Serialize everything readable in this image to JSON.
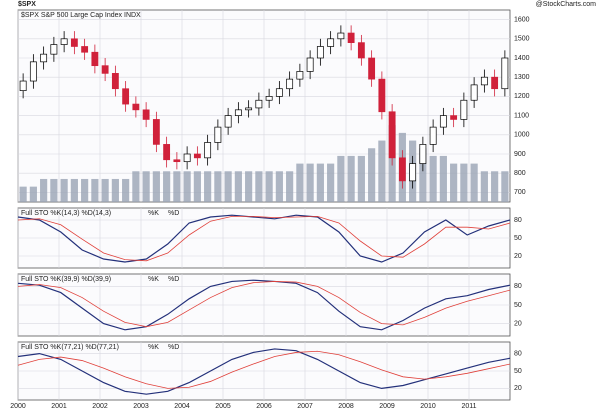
{
  "header": {
    "symbol": "$SPX",
    "source": "@StockCharts.com"
  },
  "chart_data": [
    {
      "type": "candlestick",
      "title": "$SPX S&P 500 Large Cap Index INDX",
      "categories": [
        "2000",
        null,
        null,
        null,
        "2001",
        null,
        null,
        null,
        "2002",
        null,
        null,
        null,
        "2003",
        null,
        null,
        null,
        "2004",
        null,
        null,
        null,
        "2005",
        null,
        null,
        null,
        "2006",
        null,
        null,
        null,
        "2007",
        null,
        null,
        null,
        "2008",
        null,
        null,
        null,
        "2009",
        null,
        null,
        null,
        "2010",
        null,
        null,
        null,
        "2011",
        null,
        null,
        null
      ],
      "open": [
        1230,
        1280,
        1380,
        1420,
        1470,
        1500,
        1460,
        1430,
        1360,
        1320,
        1240,
        1160,
        1130,
        1080,
        950,
        870,
        860,
        900,
        880,
        960,
        1040,
        1100,
        1130,
        1140,
        1180,
        1200,
        1240,
        1290,
        1330,
        1400,
        1460,
        1500,
        1530,
        1480,
        1400,
        1290,
        1120,
        880,
        760,
        850,
        950,
        1040,
        1100,
        1080,
        1180,
        1260,
        1300,
        1240
      ],
      "high": [
        1320,
        1420,
        1460,
        1510,
        1540,
        1540,
        1500,
        1470,
        1400,
        1360,
        1280,
        1200,
        1170,
        1120,
        990,
        910,
        940,
        940,
        1000,
        1080,
        1140,
        1170,
        1180,
        1220,
        1240,
        1280,
        1330,
        1370,
        1440,
        1500,
        1540,
        1570,
        1570,
        1520,
        1440,
        1330,
        1160,
        920,
        890,
        990,
        1080,
        1140,
        1140,
        1220,
        1300,
        1340,
        1340,
        1440
      ],
      "low": [
        1190,
        1240,
        1340,
        1380,
        1430,
        1420,
        1390,
        1320,
        1280,
        1200,
        1120,
        1090,
        1040,
        910,
        830,
        820,
        820,
        840,
        840,
        920,
        1000,
        1060,
        1090,
        1100,
        1140,
        1160,
        1200,
        1250,
        1290,
        1360,
        1420,
        1460,
        1440,
        1360,
        1250,
        1080,
        840,
        720,
        720,
        810,
        910,
        1000,
        1040,
        1040,
        1140,
        1220,
        1200,
        1200
      ],
      "close": [
        1280,
        1380,
        1420,
        1470,
        1500,
        1460,
        1430,
        1360,
        1320,
        1240,
        1160,
        1130,
        1080,
        950,
        870,
        860,
        900,
        880,
        960,
        1040,
        1100,
        1130,
        1140,
        1180,
        1200,
        1240,
        1290,
        1330,
        1400,
        1460,
        1500,
        1530,
        1480,
        1400,
        1290,
        1120,
        880,
        760,
        850,
        950,
        1040,
        1100,
        1080,
        1180,
        1260,
        1300,
        1240,
        1400
      ],
      "volume": [
        2,
        2,
        3,
        3,
        3,
        3,
        3,
        3,
        3,
        3,
        3,
        4,
        4,
        4,
        4,
        4,
        4,
        4,
        4,
        4,
        4,
        4,
        4,
        4,
        4,
        4,
        4,
        5,
        5,
        5,
        5,
        6,
        6,
        6,
        7,
        8,
        10,
        9,
        8,
        7,
        6,
        6,
        5,
        5,
        5,
        4,
        4,
        4
      ],
      "up_color": "#000000",
      "down_color": "#d0213a",
      "volume_color": "#9aa4b4",
      "ylim": [
        650,
        1650
      ],
      "yticks": [
        700,
        800,
        900,
        1000,
        1100,
        1200,
        1300,
        1400,
        1500,
        1600
      ],
      "y2lim": [
        0,
        25
      ],
      "grid": true
    },
    {
      "type": "line",
      "title": "Full STO %K(14,3) %D(14,3)",
      "series": [
        {
          "name": "%K",
          "color": "#23307a",
          "values": [
            85,
            80,
            60,
            30,
            15,
            10,
            15,
            40,
            75,
            85,
            88,
            85,
            82,
            88,
            85,
            60,
            20,
            10,
            25,
            60,
            80,
            55,
            70,
            80
          ]
        },
        {
          "name": "%D",
          "color": "#e0403a",
          "values": [
            80,
            82,
            72,
            48,
            25,
            14,
            12,
            25,
            55,
            78,
            86,
            86,
            84,
            85,
            86,
            75,
            45,
            20,
            18,
            40,
            68,
            68,
            65,
            75
          ]
        }
      ],
      "ylim": [
        0,
        100
      ],
      "yticks": [
        20,
        50,
        80
      ],
      "grid": true
    },
    {
      "type": "line",
      "title": "Full STO %K(39,9) %D(39,9)",
      "series": [
        {
          "name": "%K",
          "color": "#23307a",
          "values": [
            85,
            82,
            70,
            45,
            20,
            10,
            15,
            35,
            60,
            80,
            88,
            90,
            88,
            85,
            70,
            40,
            15,
            10,
            25,
            45,
            60,
            65,
            75,
            82
          ]
        },
        {
          "name": "%D",
          "color": "#e0403a",
          "values": [
            80,
            83,
            78,
            62,
            40,
            22,
            15,
            22,
            42,
            62,
            78,
            86,
            88,
            87,
            80,
            62,
            38,
            20,
            18,
            30,
            45,
            56,
            65,
            74
          ]
        }
      ],
      "ylim": [
        0,
        100
      ],
      "yticks": [
        20,
        50,
        80
      ],
      "grid": true
    },
    {
      "type": "line",
      "title": "Full STO %K(77,21) %D(77,21)",
      "series": [
        {
          "name": "%K",
          "color": "#23307a",
          "values": [
            75,
            80,
            70,
            50,
            30,
            15,
            10,
            15,
            30,
            50,
            70,
            82,
            88,
            85,
            70,
            50,
            30,
            20,
            25,
            35,
            45,
            55,
            65,
            72
          ]
        },
        {
          "name": "%D",
          "color": "#e0403a",
          "values": [
            60,
            70,
            74,
            68,
            55,
            40,
            28,
            20,
            22,
            32,
            48,
            62,
            75,
            82,
            84,
            78,
            66,
            52,
            40,
            36,
            40,
            46,
            54,
            62
          ]
        }
      ],
      "ylim": [
        0,
        100
      ],
      "yticks": [
        20,
        50,
        80
      ],
      "grid": true
    }
  ]
}
